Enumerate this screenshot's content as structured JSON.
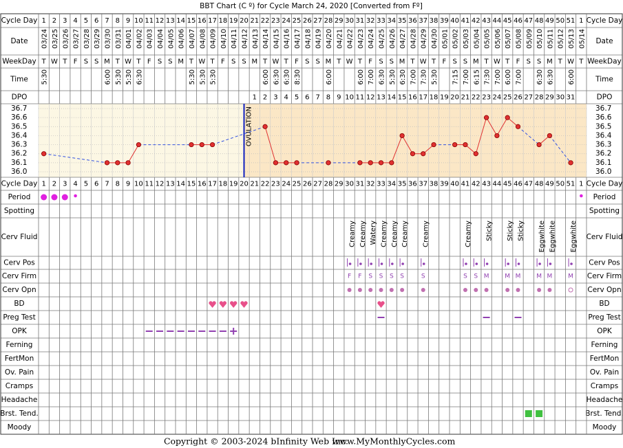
{
  "title": "BBT Chart (C º) for Cycle March 24, 2020  [Converted from Fº]",
  "copyright": "Copyright © 2003-2024 bInfinity Web Inc.",
  "website": "www.MyMonthlyCycles.com",
  "rows": [
    "Cycle Day",
    "Date",
    "WeekDay",
    "Time",
    "DPO",
    "Cycle Day",
    "Period",
    "Spotting",
    "Cerv Fluid",
    "Cerv Pos",
    "Cerv Firm",
    "Cerv Opn",
    "BD",
    "Preg Test",
    "OPK",
    "Ferning",
    "FertMon",
    "Ov. Pain",
    "Cramps",
    "Headache",
    "Brst. Tend.",
    "Moody"
  ],
  "days": [
    1,
    2,
    3,
    4,
    5,
    6,
    7,
    8,
    9,
    10,
    11,
    12,
    13,
    14,
    15,
    16,
    17,
    18,
    19,
    20,
    21,
    22,
    23,
    24,
    25,
    26,
    27,
    28,
    29,
    30,
    31,
    32,
    33,
    34,
    35,
    36,
    37,
    38,
    39,
    40,
    41,
    42,
    43,
    44,
    45,
    46,
    47,
    48,
    49,
    50,
    51,
    1
  ],
  "dates": [
    "03/24",
    "03/25",
    "03/26",
    "03/27",
    "03/28",
    "03/29",
    "03/30",
    "03/31",
    "04/01",
    "04/02",
    "04/03",
    "04/04",
    "04/05",
    "04/06",
    "04/07",
    "04/08",
    "04/09",
    "04/10",
    "04/11",
    "04/12",
    "04/13",
    "04/14",
    "04/15",
    "04/16",
    "04/17",
    "04/18",
    "04/19",
    "04/20",
    "04/21",
    "04/22",
    "04/23",
    "04/24",
    "04/25",
    "04/26",
    "04/27",
    "04/28",
    "04/29",
    "04/30",
    "05/01",
    "05/02",
    "05/03",
    "05/04",
    "05/05",
    "05/06",
    "05/07",
    "05/08",
    "05/09",
    "05/10",
    "05/11",
    "05/12",
    "05/13",
    "05/14"
  ],
  "weekdays": [
    "T",
    "W",
    "T",
    "F",
    "S",
    "S",
    "M",
    "T",
    "W",
    "T",
    "F",
    "S",
    "S",
    "M",
    "T",
    "W",
    "T",
    "F",
    "S",
    "S",
    "M",
    "T",
    "W",
    "T",
    "F",
    "S",
    "S",
    "M",
    "T",
    "W",
    "T",
    "F",
    "S",
    "S",
    "M",
    "T",
    "W",
    "T",
    "F",
    "S",
    "S",
    "M",
    "T",
    "W",
    "T",
    "F",
    "S",
    "S",
    "M",
    "T",
    "W",
    "T"
  ],
  "times": [
    "5:30",
    null,
    null,
    null,
    null,
    null,
    "6:00",
    "5:30",
    "5:30",
    "6:30",
    null,
    null,
    null,
    null,
    "5:30",
    "5:30",
    "5:30",
    null,
    null,
    null,
    null,
    "6:00",
    "6:30",
    "6:30",
    "8:30",
    null,
    null,
    "6:00",
    null,
    null,
    "6:00",
    "7:00",
    "6:30",
    "5:30",
    "6:30",
    "7:00",
    "7:30",
    "5:30",
    null,
    "7:15",
    "7:00",
    "6:15",
    "7:30",
    "7:00",
    "6:00",
    "7:00",
    null,
    "6:30",
    "6:30",
    null,
    "6:00",
    null
  ],
  "dpo": [
    null,
    null,
    null,
    null,
    null,
    null,
    null,
    null,
    null,
    null,
    null,
    null,
    null,
    null,
    null,
    null,
    null,
    null,
    null,
    null,
    1,
    2,
    3,
    4,
    5,
    6,
    7,
    8,
    9,
    10,
    11,
    12,
    13,
    14,
    15,
    16,
    17,
    18,
    19,
    20,
    21,
    22,
    23,
    24,
    25,
    26,
    27,
    28,
    29,
    30,
    31,
    null
  ],
  "temps": [
    36.2,
    null,
    null,
    null,
    null,
    null,
    36.1,
    36.1,
    36.1,
    36.3,
    null,
    null,
    null,
    null,
    36.3,
    36.3,
    36.3,
    null,
    null,
    null,
    null,
    36.5,
    36.1,
    36.1,
    36.1,
    null,
    null,
    36.1,
    null,
    null,
    36.1,
    36.1,
    36.1,
    36.1,
    36.4,
    36.2,
    36.2,
    36.3,
    null,
    36.3,
    36.3,
    36.2,
    36.6,
    36.4,
    36.6,
    36.5,
    null,
    36.3,
    36.4,
    null,
    36.1,
    null
  ],
  "temperature": {
    "ylim": [
      36.0,
      36.7
    ],
    "yticks": [
      36.7,
      36.6,
      36.5,
      36.4,
      36.3,
      36.2,
      36.1,
      {
        "value": 36.0,
        "label": "36.0"
      }
    ],
    "ovulation_day": 20,
    "ovulation_label": "OVULATION",
    "point_color": "#e03030",
    "line_color": "#e03030",
    "gap_color": "#3050e0",
    "ovulation_color": "#1020c0"
  },
  "period": {
    "heavy": [
      1,
      2,
      3
    ],
    "light": [
      4,
      52
    ],
    "color": "#e020e0"
  },
  "cerv_fluid": [
    {
      "day": 30,
      "text": "Creamy"
    },
    {
      "day": 31,
      "text": "Creamy"
    },
    {
      "day": 32,
      "text": "Watery"
    },
    {
      "day": 33,
      "text": "Creamy"
    },
    {
      "day": 34,
      "text": "Creamy"
    },
    {
      "day": 35,
      "text": "Creamy"
    },
    {
      "day": 37,
      "text": "Creamy"
    },
    {
      "day": 41,
      "text": "Creamy"
    },
    {
      "day": 43,
      "text": "Sticky"
    },
    {
      "day": 45,
      "text": "Sticky"
    },
    {
      "day": 46,
      "text": "Sticky"
    },
    {
      "day": 48,
      "text": "Eggwhite"
    },
    {
      "day": 49,
      "text": "Eggwhite"
    },
    {
      "day": 51,
      "text": "Eggwhite"
    }
  ],
  "cerv_pos": [
    30,
    31,
    32,
    33,
    34,
    35,
    37,
    41,
    42,
    43,
    45,
    46,
    48,
    49,
    51
  ],
  "cerv_firm": [
    {
      "day": 30,
      "text": "F"
    },
    {
      "day": 31,
      "text": "F"
    },
    {
      "day": 32,
      "text": "S"
    },
    {
      "day": 33,
      "text": "S"
    },
    {
      "day": 34,
      "text": "S"
    },
    {
      "day": 35,
      "text": "S"
    },
    {
      "day": 37,
      "text": "S"
    },
    {
      "day": 41,
      "text": "S"
    },
    {
      "day": 42,
      "text": "S"
    },
    {
      "day": 43,
      "text": "M"
    },
    {
      "day": 45,
      "text": "M"
    },
    {
      "day": 46,
      "text": "M"
    },
    {
      "day": 48,
      "text": "M"
    },
    {
      "day": 49,
      "text": "M"
    },
    {
      "day": 51,
      "text": "M"
    }
  ],
  "cerv_opn": {
    "closed": [
      30,
      31,
      32,
      33,
      34,
      35,
      37,
      41,
      42,
      43,
      45,
      46,
      48,
      49
    ],
    "open": [
      51
    ]
  },
  "bd": [
    17,
    18,
    19,
    20,
    33
  ],
  "preg_test": [
    33,
    43,
    46
  ],
  "opk": {
    "negative": [
      11,
      12,
      13,
      14,
      15,
      16,
      17,
      18
    ],
    "positive": [
      19
    ]
  },
  "brst_tend": [
    47,
    48
  ],
  "mark_color": "#9040b0"
}
